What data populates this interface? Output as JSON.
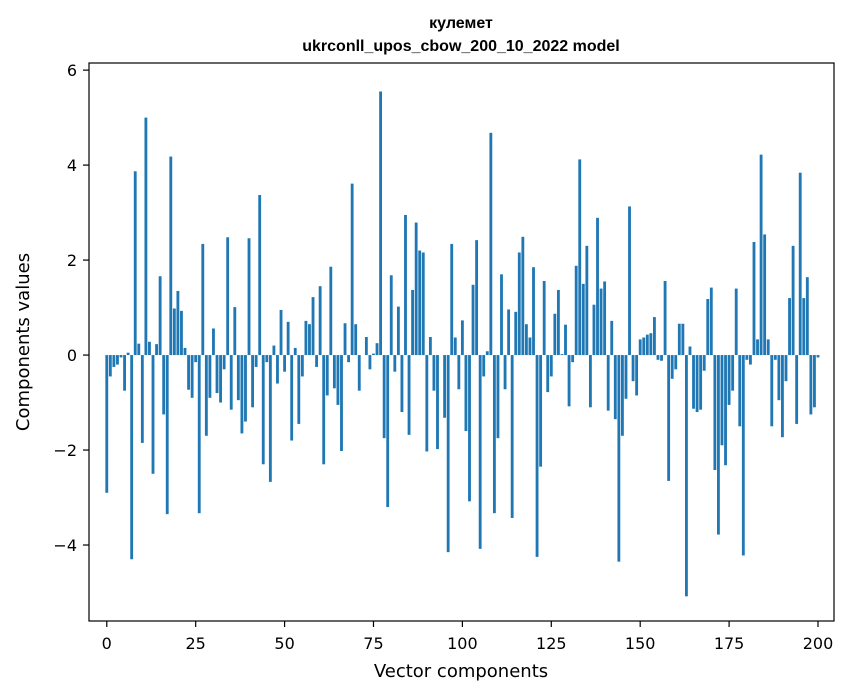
{
  "chart_data": {
    "type": "bar",
    "title_line1": "кулемет",
    "title_line2": "ukrconll_upos_cbow_200_10_2022 model",
    "xlabel": "Vector components",
    "ylabel": "Components values",
    "xlim": [
      -5,
      204.5
    ],
    "ylim": [
      -5.6,
      6.15
    ],
    "xticks": [
      0,
      25,
      50,
      75,
      100,
      125,
      150,
      175,
      200
    ],
    "yticks": [
      -4,
      -2,
      0,
      2,
      4,
      6
    ],
    "xtick_labels": [
      "0",
      "25",
      "50",
      "75",
      "100",
      "125",
      "150",
      "175",
      "200"
    ],
    "ytick_labels": [
      "−4",
      "−2",
      "0",
      "2",
      "4",
      "6"
    ],
    "bar_color": "#1f77b4",
    "grid": false,
    "values": [
      -2.9,
      -0.45,
      -0.25,
      -0.2,
      -0.05,
      -0.75,
      0.05,
      -4.3,
      3.87,
      0.24,
      -1.85,
      5.0,
      0.28,
      -2.5,
      0.23,
      1.66,
      -1.25,
      -3.35,
      4.18,
      0.98,
      1.35,
      0.93,
      0.15,
      -0.73,
      -0.9,
      -0.15,
      -3.33,
      2.34,
      -1.7,
      -0.9,
      0.56,
      -0.8,
      -1.0,
      -0.3,
      2.48,
      -1.15,
      1.01,
      -0.95,
      -1.65,
      -1.4,
      2.46,
      -1.1,
      -0.25,
      3.37,
      -2.3,
      -0.15,
      -2.67,
      0.2,
      -0.6,
      0.95,
      -0.35,
      0.7,
      -1.8,
      0.15,
      -1.45,
      -0.45,
      0.72,
      0.65,
      1.22,
      -0.25,
      1.45,
      -2.3,
      -0.85,
      1.86,
      -0.7,
      -1.05,
      -2.02,
      0.67,
      -0.15,
      3.61,
      0.65,
      -0.75,
      0.0,
      0.38,
      -0.3,
      0.03,
      0.25,
      5.55,
      -1.75,
      -3.2,
      1.68,
      -0.35,
      1.02,
      -1.2,
      2.95,
      -1.68,
      1.37,
      2.79,
      2.2,
      2.16,
      -2.03,
      0.38,
      -0.75,
      -1.98,
      0.0,
      -1.32,
      -4.15,
      2.34,
      0.37,
      -0.72,
      0.73,
      -1.6,
      -3.08,
      1.48,
      2.42,
      -4.08,
      -0.45,
      0.08,
      4.68,
      -3.33,
      -1.75,
      1.7,
      -0.72,
      0.96,
      -3.43,
      0.91,
      2.16,
      2.49,
      0.65,
      0.37,
      1.85,
      -4.25,
      -2.35,
      1.56,
      -0.78,
      -0.45,
      0.87,
      1.37,
      0.02,
      0.64,
      -1.08,
      -0.15,
      1.88,
      4.12,
      1.5,
      2.3,
      -1.1,
      1.06,
      2.89,
      1.4,
      1.55,
      -1.17,
      0.72,
      -1.35,
      -4.35,
      -1.7,
      -0.92,
      3.13,
      -0.55,
      -0.85,
      0.33,
      0.37,
      0.43,
      0.46,
      0.8,
      -0.1,
      -0.12,
      1.56,
      -2.65,
      -0.5,
      -0.3,
      0.66,
      0.66,
      -5.08,
      0.18,
      -1.13,
      -1.2,
      -1.15,
      -0.33,
      1.18,
      1.42,
      -2.42,
      -3.78,
      -1.9,
      -2.32,
      -1.05,
      -0.75,
      1.4,
      -1.5,
      -4.22,
      -0.1,
      -0.2,
      2.38,
      0.33,
      4.22,
      2.54,
      0.33,
      -1.5,
      -0.1,
      -0.95,
      -1.73,
      -0.55,
      1.2,
      2.3,
      -1.45,
      3.84,
      1.2,
      1.64,
      -1.25,
      -1.1,
      -0.05
    ]
  }
}
